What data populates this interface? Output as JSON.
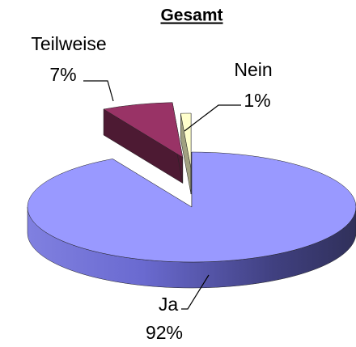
{
  "chart_data": {
    "type": "pie",
    "title": "Gesamt",
    "categories": [
      "Ja",
      "Teilweise",
      "Nein"
    ],
    "values": [
      92,
      7,
      1
    ],
    "value_labels": [
      "92%",
      "7%",
      "1%"
    ],
    "colors": [
      "#9999ff",
      "#993366",
      "#ffffcc"
    ]
  }
}
